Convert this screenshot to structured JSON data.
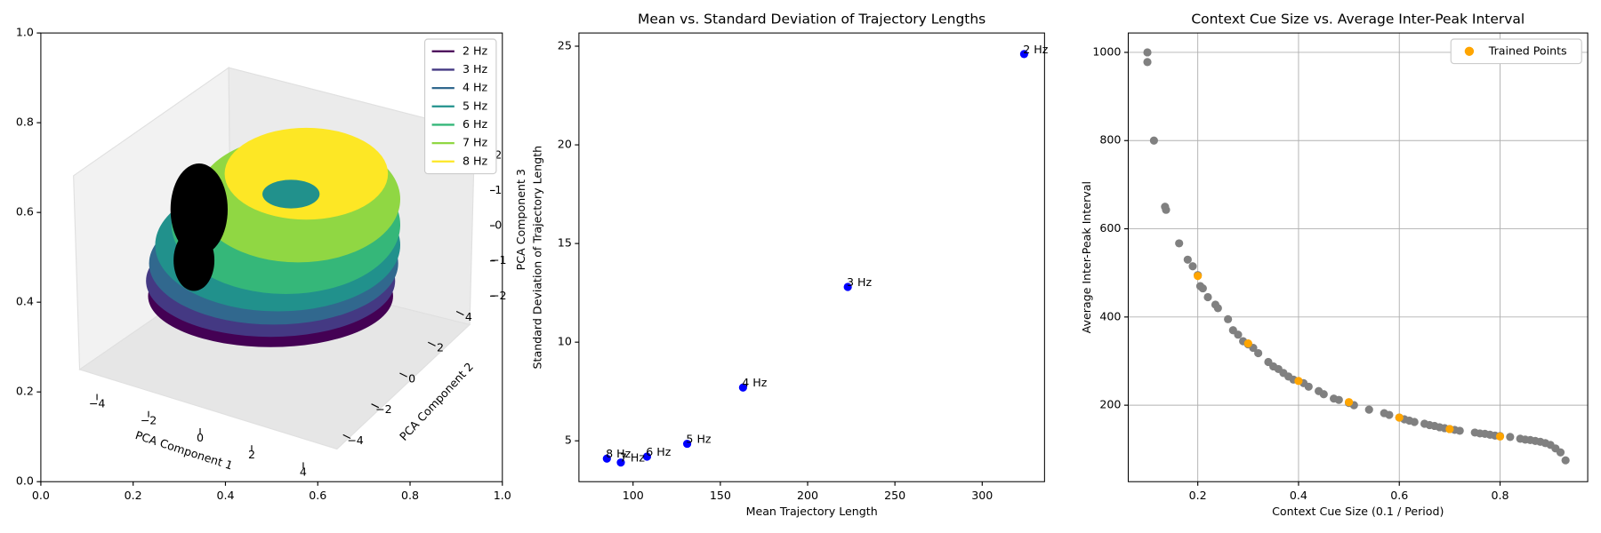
{
  "chart_data": [
    {
      "type": "line3d",
      "xlim": [
        0,
        1
      ],
      "ylim": [
        0,
        1
      ],
      "xticks": [
        {
          "value": 0,
          "label": "0.0"
        },
        {
          "value": 0.2,
          "label": "0.2"
        },
        {
          "value": 0.4,
          "label": "0.4"
        },
        {
          "value": 0.6,
          "label": "0.6"
        },
        {
          "value": 0.8,
          "label": "0.8"
        },
        {
          "value": 1,
          "label": "1.0"
        }
      ],
      "yticks": [
        {
          "value": 0,
          "label": "0.0"
        },
        {
          "value": 0.2,
          "label": "0.2"
        },
        {
          "value": 0.4,
          "label": "0.4"
        },
        {
          "value": 0.6,
          "label": "0.6"
        },
        {
          "value": 0.8,
          "label": "0.8"
        },
        {
          "value": 1,
          "label": "1.0"
        }
      ],
      "axes3d": [
        {
          "label": "PCA Component 1",
          "lim": [
            -4,
            4
          ],
          "ticks": [
            {
              "value": -4,
              "label": "−4"
            },
            {
              "value": -2,
              "label": "−2"
            },
            0,
            2,
            4
          ]
        },
        {
          "label": "PCA Component 2",
          "lim": [
            -4,
            4
          ],
          "ticks": [
            {
              "value": -4,
              "label": "−4"
            },
            {
              "value": -2,
              "label": "−2"
            },
            0,
            2,
            4
          ]
        },
        {
          "label": "PCA Component 3",
          "lim": [
            -2,
            2
          ],
          "ticks": [
            {
              "value": -2,
              "label": "−2"
            },
            {
              "value": -1,
              "label": "−1"
            },
            0,
            1,
            2
          ]
        }
      ],
      "legend": "upper right",
      "series": [
        {
          "name": "2 Hz",
          "color": "#440154"
        },
        {
          "name": "3 Hz",
          "color": "#443983"
        },
        {
          "name": "4 Hz",
          "color": "#31688e"
        },
        {
          "name": "5 Hz",
          "color": "#21918c"
        },
        {
          "name": "6 Hz",
          "color": "#35b779"
        },
        {
          "name": "7 Hz",
          "color": "#90d743"
        },
        {
          "name": "8 Hz",
          "color": "#fde725"
        }
      ]
    },
    {
      "type": "scatter",
      "title": "Mean vs. Standard Deviation of Trajectory Lengths",
      "xlabel": "Mean Trajectory Length",
      "ylabel": "Standard Deviation of Trajectory Length",
      "xlim": [
        69,
        335.7
      ],
      "ylim": [
        2.93,
        25.67
      ],
      "xticks": [
        100,
        150,
        200,
        250,
        300
      ],
      "yticks": [
        5,
        10,
        15,
        20,
        25
      ],
      "color": "blue",
      "labels": [
        "2 Hz",
        "3 Hz",
        "4 Hz",
        "5 Hz",
        "6 Hz",
        "7 Hz",
        "8 Hz"
      ],
      "x": [
        324,
        223,
        163,
        131,
        108,
        93,
        85
      ],
      "values": [
        24.6,
        12.8,
        7.7,
        4.85,
        4.2,
        3.9,
        4.1
      ]
    },
    {
      "type": "scatter",
      "title": "Context Cue Size vs. Average Inter-Peak Interval",
      "xlabel": "Context Cue Size (0.1 / Period)",
      "ylabel": "Average Inter-Peak Interval",
      "xlim": [
        0.062,
        0.974
      ],
      "ylim": [
        26.6,
        1044
      ],
      "xticks": [
        0.2,
        0.4,
        0.6,
        0.8
      ],
      "yticks": [
        200,
        400,
        600,
        800,
        1000
      ],
      "grid": true,
      "legend": "upper right",
      "series": [
        {
          "color": "gray",
          "x": [
            0.1,
            0.1,
            0.113,
            0.135,
            0.137,
            0.163,
            0.18,
            0.19,
            0.2,
            0.205,
            0.21,
            0.22,
            0.235,
            0.24,
            0.26,
            0.27,
            0.28,
            0.29,
            0.3,
            0.31,
            0.32,
            0.34,
            0.35,
            0.36,
            0.37,
            0.38,
            0.39,
            0.41,
            0.42,
            0.44,
            0.45,
            0.47,
            0.48,
            0.5,
            0.51,
            0.54,
            0.57,
            0.58,
            0.6,
            0.61,
            0.62,
            0.63,
            0.65,
            0.66,
            0.67,
            0.68,
            0.69,
            0.7,
            0.71,
            0.72,
            0.75,
            0.76,
            0.77,
            0.78,
            0.79,
            0.8,
            0.82,
            0.84,
            0.85,
            0.86,
            0.87,
            0.88,
            0.89,
            0.9,
            0.91,
            0.92,
            0.93
          ],
          "values": [
            1000,
            978,
            800,
            650,
            643,
            567,
            530,
            515,
            495,
            470,
            465,
            445,
            428,
            420,
            395,
            370,
            360,
            345,
            338,
            330,
            318,
            298,
            288,
            282,
            273,
            265,
            258,
            250,
            242,
            232,
            225,
            215,
            212,
            205,
            200,
            190,
            182,
            178,
            172,
            168,
            165,
            162,
            158,
            155,
            153,
            150,
            148,
            146,
            144,
            142,
            138,
            136,
            135,
            133,
            131,
            130,
            128,
            124,
            122,
            121,
            119,
            117,
            114,
            110,
            102,
            93,
            75
          ]
        },
        {
          "name": "Trained Points",
          "color": "orange",
          "x": [
            0.2,
            0.3,
            0.4,
            0.5,
            0.6,
            0.7,
            0.8
          ],
          "values": [
            493,
            340,
            255,
            207,
            172,
            146,
            129
          ]
        }
      ]
    }
  ]
}
